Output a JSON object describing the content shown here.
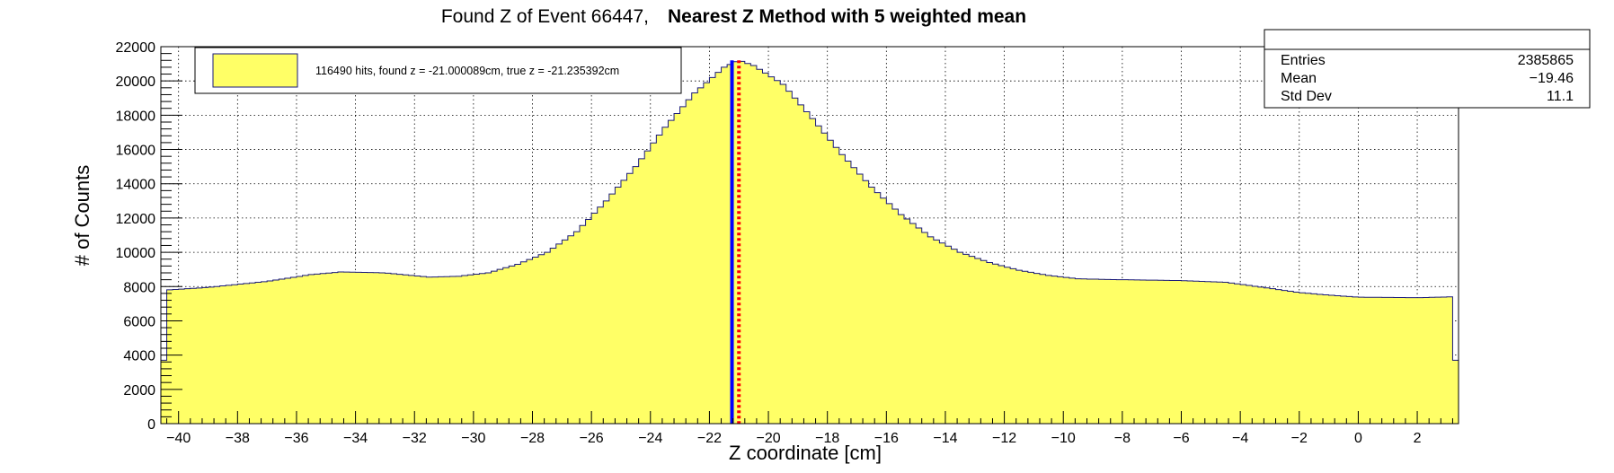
{
  "chart_data": {
    "type": "histogram",
    "title_part1": "Found Z of Event 66447,",
    "title_part2": "Nearest Z Method with 5 weighted mean",
    "xlabel": "Z coordinate [cm]",
    "ylabel": "# of Counts",
    "xlim": [
      -40.6,
      3.4
    ],
    "ylim": [
      0,
      22000
    ],
    "x_ticks": [
      -40,
      -38,
      -36,
      -34,
      -32,
      -30,
      -28,
      -26,
      -24,
      -22,
      -20,
      -18,
      -16,
      -14,
      -12,
      -10,
      -8,
      -6,
      -4,
      -2,
      0,
      2
    ],
    "y_ticks": [
      0,
      2000,
      4000,
      6000,
      8000,
      10000,
      12000,
      14000,
      16000,
      18000,
      20000,
      22000
    ],
    "grid": true,
    "fill_color": "#ffff66",
    "line_color": "#1a1a7a",
    "profile": [
      [
        -40.6,
        3700
      ],
      [
        -40.4,
        7800
      ],
      [
        -39.0,
        7950
      ],
      [
        -37.0,
        8300
      ],
      [
        -35.5,
        8700
      ],
      [
        -34.5,
        8850
      ],
      [
        -33.0,
        8800
      ],
      [
        -31.5,
        8550
      ],
      [
        -30.5,
        8600
      ],
      [
        -29.5,
        8800
      ],
      [
        -28.5,
        9300
      ],
      [
        -27.5,
        10000
      ],
      [
        -26.5,
        11200
      ],
      [
        -25.5,
        13000
      ],
      [
        -24.5,
        15000
      ],
      [
        -23.5,
        17300
      ],
      [
        -22.5,
        19300
      ],
      [
        -21.5,
        20800
      ],
      [
        -21.0,
        21200
      ],
      [
        -20.5,
        20900
      ],
      [
        -19.5,
        19800
      ],
      [
        -18.5,
        17800
      ],
      [
        -17.5,
        15700
      ],
      [
        -16.5,
        13800
      ],
      [
        -15.5,
        12200
      ],
      [
        -14.5,
        10900
      ],
      [
        -13.5,
        10000
      ],
      [
        -12.5,
        9400
      ],
      [
        -11.5,
        8950
      ],
      [
        -10.5,
        8650
      ],
      [
        -9.5,
        8450
      ],
      [
        -8.0,
        8400
      ],
      [
        -6.0,
        8350
      ],
      [
        -4.5,
        8250
      ],
      [
        -3.0,
        7900
      ],
      [
        -2.0,
        7650
      ],
      [
        -1.0,
        7500
      ],
      [
        0.0,
        7380
      ],
      [
        2.0,
        7350
      ],
      [
        3.2,
        7400
      ],
      [
        3.4,
        3700
      ]
    ],
    "markers": [
      {
        "x": -21.235392,
        "color": "#0000ff",
        "style": "solid"
      },
      {
        "x": -21.000089,
        "color": "#ff0000",
        "style": "dotted"
      }
    ],
    "legend": {
      "text": "116490 hits, found z = -21.000089cm, true z = -21.235392cm",
      "swatch_color": "#ffff66"
    },
    "stats": {
      "rows": [
        {
          "label": "Entries",
          "value": "2385865"
        },
        {
          "label": "Mean",
          "value": "−19.46"
        },
        {
          "label": "Std Dev",
          "value": "11.1"
        }
      ]
    }
  }
}
